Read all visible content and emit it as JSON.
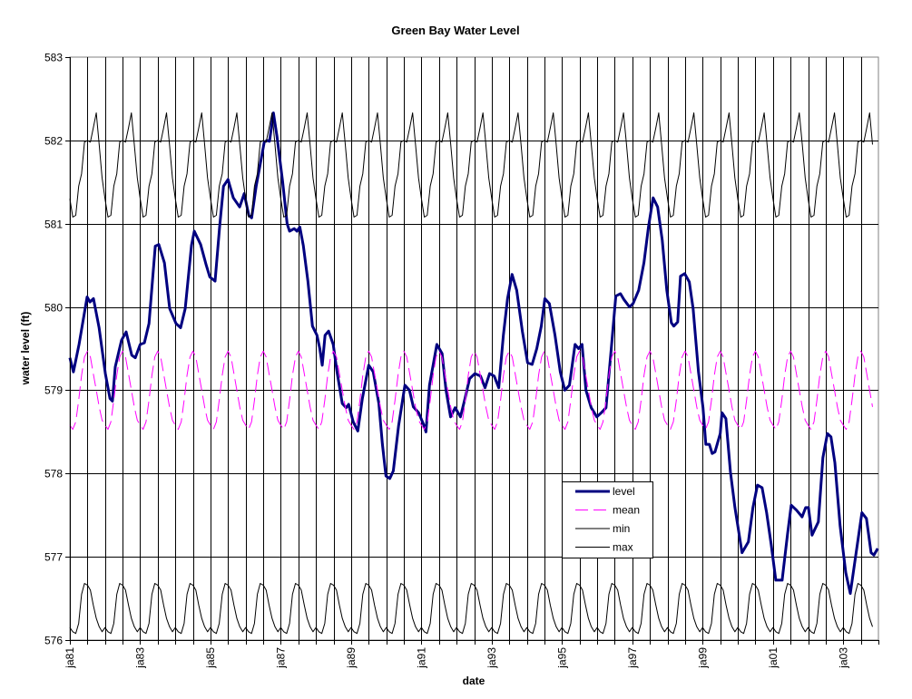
{
  "chart_data": {
    "type": "line",
    "title": "Green Bay Water Level",
    "xlabel": "date",
    "ylabel": "water level (ft)",
    "xlim": [
      1981,
      2004
    ],
    "ylim": [
      576,
      583
    ],
    "yticks": [
      576,
      577,
      578,
      579,
      580,
      581,
      582,
      583
    ],
    "xtick_labels": [
      "ja81",
      "ja83",
      "ja85",
      "ja87",
      "ja89",
      "ja91",
      "ja93",
      "ja95",
      "ja97",
      "ja99",
      "ja01",
      "ja03"
    ],
    "xtick_years": [
      1981,
      1983,
      1985,
      1987,
      1989,
      1991,
      1993,
      1995,
      1997,
      1999,
      2001,
      2003
    ],
    "grid": true,
    "legend_placement": "lower-right",
    "legend": [
      "level",
      "mean",
      "min",
      "max"
    ],
    "colors": {
      "level": "#000080",
      "mean": "#FF00FF",
      "min": "#000000",
      "max": "#000000"
    },
    "series": [
      {
        "name": "level",
        "style": "solid-thick",
        "points": [
          [
            1981.0,
            579.39
          ],
          [
            1981.1,
            579.22
          ],
          [
            1981.26,
            579.55
          ],
          [
            1981.49,
            580.12
          ],
          [
            1981.57,
            580.06
          ],
          [
            1981.67,
            580.1
          ],
          [
            1981.83,
            579.75
          ],
          [
            1982.01,
            579.2
          ],
          [
            1982.14,
            578.9
          ],
          [
            1982.21,
            578.87
          ],
          [
            1982.29,
            579.28
          ],
          [
            1982.47,
            579.6
          ],
          [
            1982.6,
            579.7
          ],
          [
            1982.76,
            579.42
          ],
          [
            1982.86,
            579.39
          ],
          [
            1983.0,
            579.55
          ],
          [
            1983.12,
            579.57
          ],
          [
            1983.25,
            579.8
          ],
          [
            1983.43,
            580.73
          ],
          [
            1983.53,
            580.75
          ],
          [
            1983.69,
            580.53
          ],
          [
            1983.84,
            579.98
          ],
          [
            1984.02,
            579.8
          ],
          [
            1984.15,
            579.75
          ],
          [
            1984.28,
            579.98
          ],
          [
            1984.46,
            580.74
          ],
          [
            1984.54,
            580.91
          ],
          [
            1984.72,
            580.75
          ],
          [
            1984.88,
            580.5
          ],
          [
            1984.98,
            580.36
          ],
          [
            1985.13,
            580.31
          ],
          [
            1985.26,
            580.96
          ],
          [
            1985.37,
            581.45
          ],
          [
            1985.5,
            581.53
          ],
          [
            1985.65,
            581.31
          ],
          [
            1985.83,
            581.2
          ],
          [
            1985.96,
            581.36
          ],
          [
            1986.09,
            581.1
          ],
          [
            1986.17,
            581.07
          ],
          [
            1986.3,
            581.45
          ],
          [
            1986.53,
            581.98
          ],
          [
            1986.61,
            582.0
          ],
          [
            1986.68,
            581.99
          ],
          [
            1986.79,
            582.33
          ],
          [
            1986.89,
            582.05
          ],
          [
            1987.05,
            581.51
          ],
          [
            1987.18,
            581.0
          ],
          [
            1987.25,
            580.91
          ],
          [
            1987.38,
            580.94
          ],
          [
            1987.46,
            580.91
          ],
          [
            1987.54,
            580.96
          ],
          [
            1987.64,
            580.74
          ],
          [
            1987.77,
            580.31
          ],
          [
            1987.9,
            579.77
          ],
          [
            1988.03,
            579.66
          ],
          [
            1988.11,
            579.5
          ],
          [
            1988.18,
            579.3
          ],
          [
            1988.26,
            579.66
          ],
          [
            1988.36,
            579.71
          ],
          [
            1988.49,
            579.55
          ],
          [
            1988.6,
            579.22
          ],
          [
            1988.75,
            578.84
          ],
          [
            1988.86,
            578.79
          ],
          [
            1988.93,
            578.83
          ],
          [
            1989.06,
            578.62
          ],
          [
            1989.19,
            578.51
          ],
          [
            1989.32,
            578.9
          ],
          [
            1989.5,
            579.3
          ],
          [
            1989.63,
            579.22
          ],
          [
            1989.79,
            578.84
          ],
          [
            1989.89,
            578.35
          ],
          [
            1989.99,
            577.97
          ],
          [
            1990.1,
            577.94
          ],
          [
            1990.2,
            578.03
          ],
          [
            1990.35,
            578.57
          ],
          [
            1990.53,
            579.06
          ],
          [
            1990.66,
            579.0
          ],
          [
            1990.77,
            578.8
          ],
          [
            1990.92,
            578.73
          ],
          [
            1991.08,
            578.57
          ],
          [
            1991.13,
            578.5
          ],
          [
            1991.23,
            579.06
          ],
          [
            1991.44,
            579.55
          ],
          [
            1991.59,
            579.44
          ],
          [
            1991.7,
            579.0
          ],
          [
            1991.83,
            578.68
          ],
          [
            1991.96,
            578.79
          ],
          [
            1992.11,
            578.68
          ],
          [
            1992.24,
            578.9
          ],
          [
            1992.37,
            579.14
          ],
          [
            1992.52,
            579.2
          ],
          [
            1992.68,
            579.17
          ],
          [
            1992.81,
            579.03
          ],
          [
            1992.94,
            579.2
          ],
          [
            1993.07,
            579.17
          ],
          [
            1993.2,
            579.03
          ],
          [
            1993.33,
            579.66
          ],
          [
            1993.45,
            580.1
          ],
          [
            1993.58,
            580.39
          ],
          [
            1993.71,
            580.2
          ],
          [
            1993.87,
            579.71
          ],
          [
            1994.02,
            579.33
          ],
          [
            1994.15,
            579.31
          ],
          [
            1994.28,
            579.5
          ],
          [
            1994.41,
            579.77
          ],
          [
            1994.51,
            580.1
          ],
          [
            1994.64,
            580.04
          ],
          [
            1994.8,
            579.66
          ],
          [
            1994.95,
            579.22
          ],
          [
            1995.08,
            579.0
          ],
          [
            1995.21,
            579.06
          ],
          [
            1995.37,
            579.55
          ],
          [
            1995.47,
            579.5
          ],
          [
            1995.57,
            579.55
          ],
          [
            1995.68,
            579.0
          ],
          [
            1995.83,
            578.79
          ],
          [
            1995.99,
            578.68
          ],
          [
            1996.12,
            578.73
          ],
          [
            1996.25,
            578.79
          ],
          [
            1996.4,
            579.5
          ],
          [
            1996.53,
            580.13
          ],
          [
            1996.66,
            580.16
          ],
          [
            1996.76,
            580.09
          ],
          [
            1996.92,
            580.0
          ],
          [
            1997.02,
            580.04
          ],
          [
            1997.18,
            580.2
          ],
          [
            1997.33,
            580.53
          ],
          [
            1997.46,
            580.96
          ],
          [
            1997.59,
            581.31
          ],
          [
            1997.72,
            581.2
          ],
          [
            1997.85,
            580.8
          ],
          [
            1997.98,
            580.2
          ],
          [
            1998.11,
            579.81
          ],
          [
            1998.18,
            579.77
          ],
          [
            1998.29,
            579.82
          ],
          [
            1998.37,
            580.37
          ],
          [
            1998.49,
            580.4
          ],
          [
            1998.62,
            580.3
          ],
          [
            1998.73,
            579.98
          ],
          [
            1998.88,
            579.22
          ],
          [
            1999.01,
            578.79
          ],
          [
            1999.09,
            578.35
          ],
          [
            1999.19,
            578.35
          ],
          [
            1999.27,
            578.24
          ],
          [
            1999.35,
            578.26
          ],
          [
            1999.5,
            578.48
          ],
          [
            1999.55,
            578.73
          ],
          [
            1999.66,
            578.66
          ],
          [
            1999.79,
            578.02
          ],
          [
            1999.92,
            577.59
          ],
          [
            2000.12,
            577.05
          ],
          [
            2000.3,
            577.18
          ],
          [
            2000.43,
            577.59
          ],
          [
            2000.56,
            577.86
          ],
          [
            2000.69,
            577.83
          ],
          [
            2000.82,
            577.53
          ],
          [
            2000.95,
            577.15
          ],
          [
            2001.08,
            576.72
          ],
          [
            2001.26,
            576.72
          ],
          [
            2001.41,
            577.26
          ],
          [
            2001.52,
            577.62
          ],
          [
            2001.67,
            577.56
          ],
          [
            2001.83,
            577.48
          ],
          [
            2001.93,
            577.59
          ],
          [
            2002.01,
            577.59
          ],
          [
            2002.11,
            577.26
          ],
          [
            2002.29,
            577.42
          ],
          [
            2002.42,
            578.19
          ],
          [
            2002.55,
            578.48
          ],
          [
            2002.65,
            578.44
          ],
          [
            2002.76,
            578.13
          ],
          [
            2002.91,
            577.37
          ],
          [
            2003.07,
            576.81
          ],
          [
            2003.2,
            576.56
          ],
          [
            2003.33,
            576.94
          ],
          [
            2003.53,
            577.53
          ],
          [
            2003.66,
            577.46
          ],
          [
            2003.79,
            577.05
          ],
          [
            2003.87,
            577.02
          ],
          [
            2003.98,
            577.1
          ]
        ]
      },
      {
        "name": "mean",
        "style": "dashed",
        "monthly": [
          578.58,
          578.53,
          578.62,
          578.88,
          579.18,
          579.4,
          579.47,
          579.4,
          579.2,
          579.0,
          578.8,
          578.64
        ]
      },
      {
        "name": "min",
        "style": "solid-thin",
        "monthly": [
          576.15,
          576.1,
          576.08,
          576.2,
          576.55,
          576.68,
          576.66,
          576.6,
          576.42,
          576.26,
          576.16,
          576.1
        ]
      },
      {
        "name": "max",
        "style": "solid-thin",
        "monthly": [
          581.3,
          581.08,
          581.1,
          581.45,
          581.6,
          581.98,
          582.0,
          581.98,
          582.15,
          582.33,
          581.95,
          581.55
        ]
      }
    ]
  }
}
